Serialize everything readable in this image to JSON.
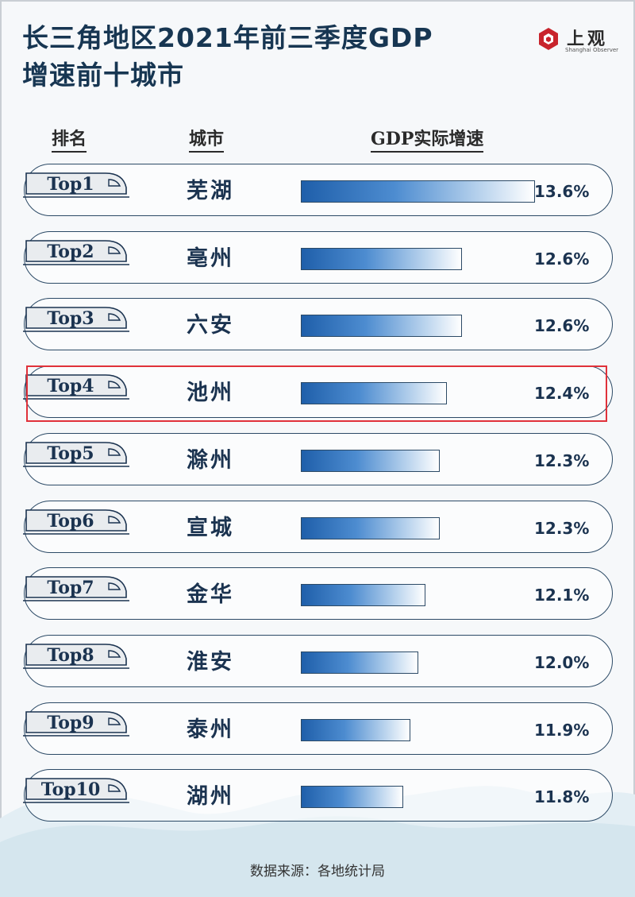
{
  "title": {
    "line1": "长三角地区2021年前三季度GDP",
    "line2": "增速前十城市"
  },
  "logo": {
    "name": "上观",
    "sub": "Shanghai Observer"
  },
  "headers": {
    "rank": "排名",
    "city": "城市",
    "growth": "GDP实际增速"
  },
  "highlight_rank": 4,
  "source": "数据来源：各地统计局",
  "colors": {
    "text": "#1b3350",
    "bar_dark": "#1f5faa",
    "bar_light": "#ffffff",
    "highlight": "#e0313a"
  },
  "chart_data": {
    "type": "bar",
    "orientation": "horizontal",
    "title": "长三角地区2021年前三季度GDP增速前十城市",
    "unit": "%",
    "ranks": [
      "Top1",
      "Top2",
      "Top3",
      "Top4",
      "Top5",
      "Top6",
      "Top7",
      "Top8",
      "Top9",
      "Top10"
    ],
    "categories": [
      "芜湖",
      "亳州",
      "六安",
      "池州",
      "滁州",
      "宣城",
      "金华",
      "淮安",
      "泰州",
      "湖州"
    ],
    "values": [
      13.6,
      12.6,
      12.6,
      12.4,
      12.3,
      12.3,
      12.1,
      12.0,
      11.9,
      11.8
    ],
    "labels": [
      "13.6%",
      "12.6%",
      "12.6%",
      "12.4%",
      "12.3%",
      "12.3%",
      "12.1%",
      "12.0%",
      "11.9%",
      "11.8%"
    ]
  }
}
